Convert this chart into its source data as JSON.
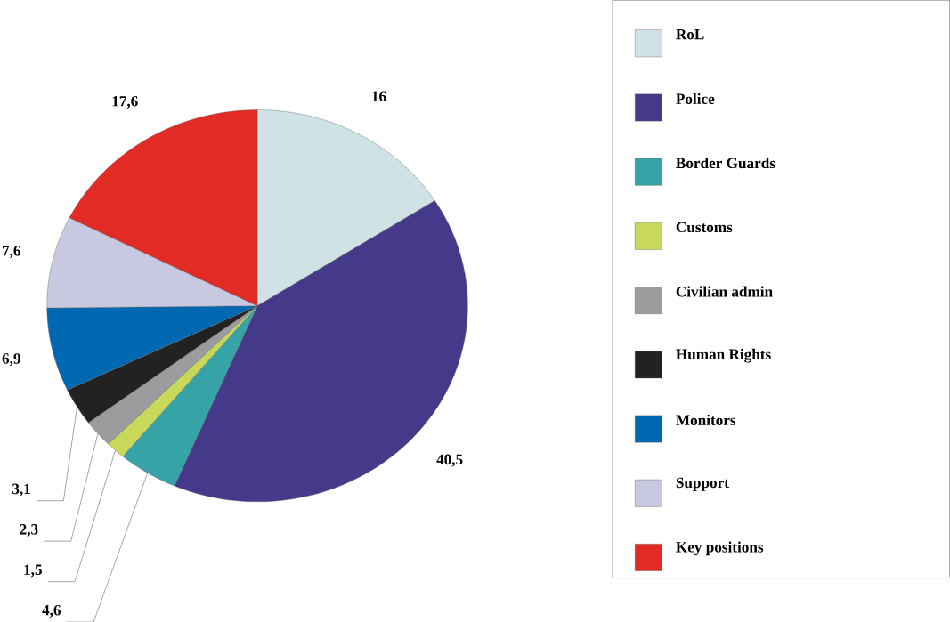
{
  "chart_data": {
    "type": "pie",
    "categories": [
      "RoL",
      "Police",
      "Border Guards",
      "Customs",
      "Civilian admin",
      "Human Rights",
      "Monitors",
      "Support",
      "Key positions"
    ],
    "values": [
      16,
      40.5,
      4.6,
      1.5,
      2.3,
      3.1,
      6.9,
      7.6,
      17.6
    ],
    "colors": [
      "#cfe3e6",
      "#453a8a",
      "#36a3a6",
      "#c8d85a",
      "#9a9c9e",
      "#222222",
      "#0068b0",
      "#c8c8e0",
      "#e32b26"
    ],
    "value_labels": [
      "16",
      "40,5",
      "4,6",
      "1,5",
      "2,3",
      "3,1",
      "6,9",
      "7,6",
      "17,6"
    ],
    "legend": "right"
  }
}
